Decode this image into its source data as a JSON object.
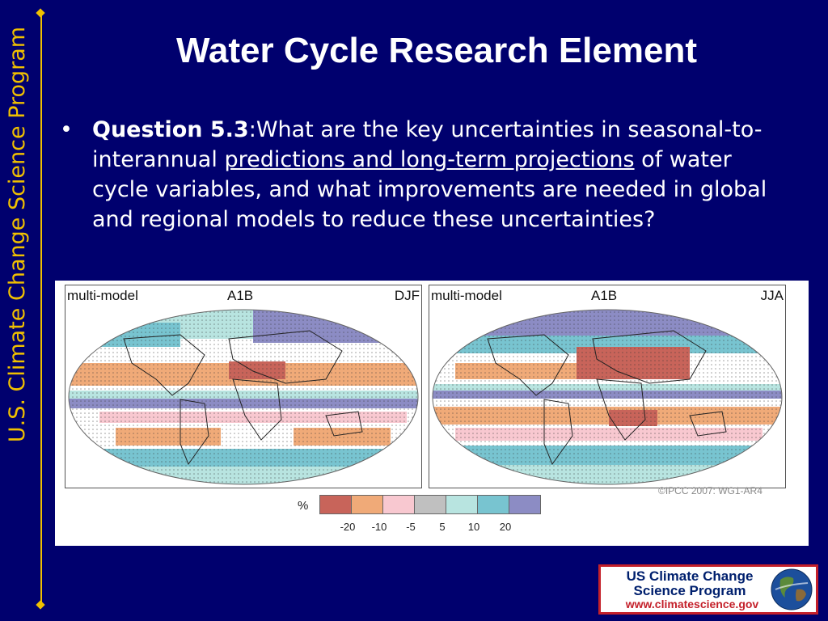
{
  "slide": {
    "title": "Water Cycle Research Element",
    "side_banner": "U.S. Climate Change Science Program",
    "bullet": {
      "marker": "•",
      "question_label": "Question 5.3",
      "text_1": ":What are the key uncertainties in seasonal-to-interannual ",
      "underlined": "predictions and long-term projections",
      "text_2": " of water cycle variables, and what improvements are needed in global and regional models to reduce these uncertainties?"
    }
  },
  "figure": {
    "left_panel": {
      "model": "multi-model",
      "scenario": "A1B",
      "season": "DJF"
    },
    "right_panel": {
      "model": "multi-model",
      "scenario": "A1B",
      "season": "JJA"
    },
    "credit": "©IPCC  2007: WG1-AR4",
    "legend": {
      "unit": "%",
      "colors": [
        "#c8645a",
        "#f0aa78",
        "#f8c8d0",
        "#c0c0c0",
        "#b8e4e0",
        "#78c4d0",
        "#8c8cc4"
      ],
      "ticks": [
        "-20",
        "-10",
        "-5",
        "5",
        "10",
        "20"
      ]
    }
  },
  "logo": {
    "line1": "US Climate Change",
    "line2": "Science Program",
    "url": "www.climatescience.gov"
  },
  "icons": [
    "globe-icon"
  ]
}
